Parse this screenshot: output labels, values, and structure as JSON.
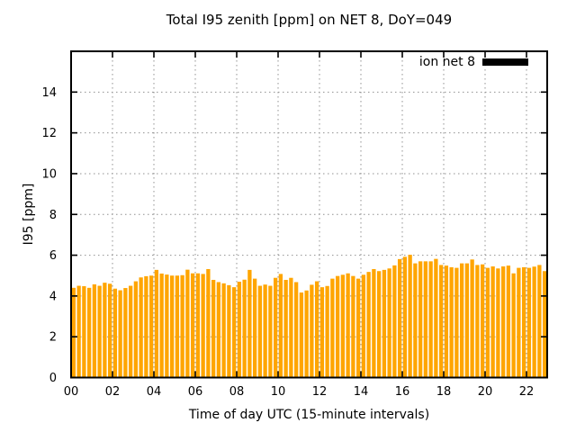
{
  "title": "Total I95 zenith [ppm] on NET 8, DoY=049",
  "legend": {
    "label": "ion net 8",
    "swatch_color": "#000000"
  },
  "axes": {
    "ylabel": "I95 [ppm]",
    "xlabel": "Time of day UTC (15-minute intervals)",
    "y_ticks": [
      "0",
      "2",
      "4",
      "6",
      "8",
      "10",
      "12",
      "14"
    ],
    "x_ticks": [
      "00",
      "02",
      "04",
      "06",
      "08",
      "10",
      "12",
      "14",
      "16",
      "18",
      "20",
      "22"
    ]
  },
  "colors": {
    "bar": "#FFA500",
    "grid": "#909090",
    "border": "#000000",
    "background": "#FFFFFF",
    "text": "#000000"
  },
  "chart_data": {
    "type": "bar",
    "title": "Total I95 zenith [ppm] on NET 8, DoY=049",
    "xlabel": "Time of day UTC (15-minute intervals)",
    "ylabel": "I95 [ppm]",
    "ylim": [
      0,
      16
    ],
    "xlim_hours": [
      0,
      23
    ],
    "interval_minutes": 15,
    "grid": true,
    "legend_entries": [
      "ion net 8"
    ],
    "legend_position": "top-right-inside",
    "series_name": "ion net 8",
    "bar_color": "#FFA500",
    "x_times": [
      "00:00",
      "00:15",
      "00:30",
      "00:45",
      "01:00",
      "01:15",
      "01:30",
      "01:45",
      "02:00",
      "02:15",
      "02:30",
      "02:45",
      "03:00",
      "03:15",
      "03:30",
      "03:45",
      "04:00",
      "04:15",
      "04:30",
      "04:45",
      "05:00",
      "05:15",
      "05:30",
      "05:45",
      "06:00",
      "06:15",
      "06:30",
      "06:45",
      "07:00",
      "07:15",
      "07:30",
      "07:45",
      "08:00",
      "08:15",
      "08:30",
      "08:45",
      "09:00",
      "09:15",
      "09:30",
      "09:45",
      "10:00",
      "10:15",
      "10:30",
      "10:45",
      "11:00",
      "11:15",
      "11:30",
      "11:45",
      "12:00",
      "12:15",
      "12:30",
      "12:45",
      "13:00",
      "13:15",
      "13:30",
      "13:45",
      "14:00",
      "14:15",
      "14:30",
      "14:45",
      "15:00",
      "15:15",
      "15:30",
      "15:45",
      "16:00",
      "16:15",
      "16:30",
      "16:45",
      "17:00",
      "17:15",
      "17:30",
      "17:45",
      "18:00",
      "18:15",
      "18:30",
      "18:45",
      "19:00",
      "19:15",
      "19:30",
      "19:45",
      "20:00",
      "20:15",
      "20:30",
      "20:45",
      "21:00",
      "21:15",
      "21:30",
      "21:45",
      "22:00",
      "22:15",
      "22:30",
      "22:45"
    ],
    "values": [
      4.4,
      4.5,
      4.48,
      4.4,
      4.57,
      4.5,
      4.65,
      4.6,
      4.36,
      4.28,
      4.39,
      4.5,
      4.72,
      4.91,
      4.97,
      5.0,
      5.28,
      5.1,
      5.05,
      5.0,
      5.0,
      5.02,
      5.29,
      5.11,
      5.11,
      5.08,
      5.32,
      4.79,
      4.68,
      4.62,
      4.53,
      4.43,
      4.7,
      4.8,
      5.28,
      4.85,
      4.5,
      4.56,
      4.5,
      4.89,
      5.08,
      4.79,
      4.89,
      4.68,
      4.17,
      4.27,
      4.55,
      4.72,
      4.43,
      4.49,
      4.85,
      4.98,
      5.04,
      5.11,
      4.98,
      4.85,
      5.04,
      5.18,
      5.32,
      5.22,
      5.28,
      5.35,
      5.5,
      5.81,
      5.92,
      6.02,
      5.6,
      5.7,
      5.7,
      5.7,
      5.82,
      5.52,
      5.49,
      5.41,
      5.38,
      5.6,
      5.6,
      5.79,
      5.52,
      5.55,
      5.38,
      5.45,
      5.35,
      5.45,
      5.49,
      5.11,
      5.38,
      5.41,
      5.38,
      5.44,
      5.52,
      5.22
    ]
  }
}
